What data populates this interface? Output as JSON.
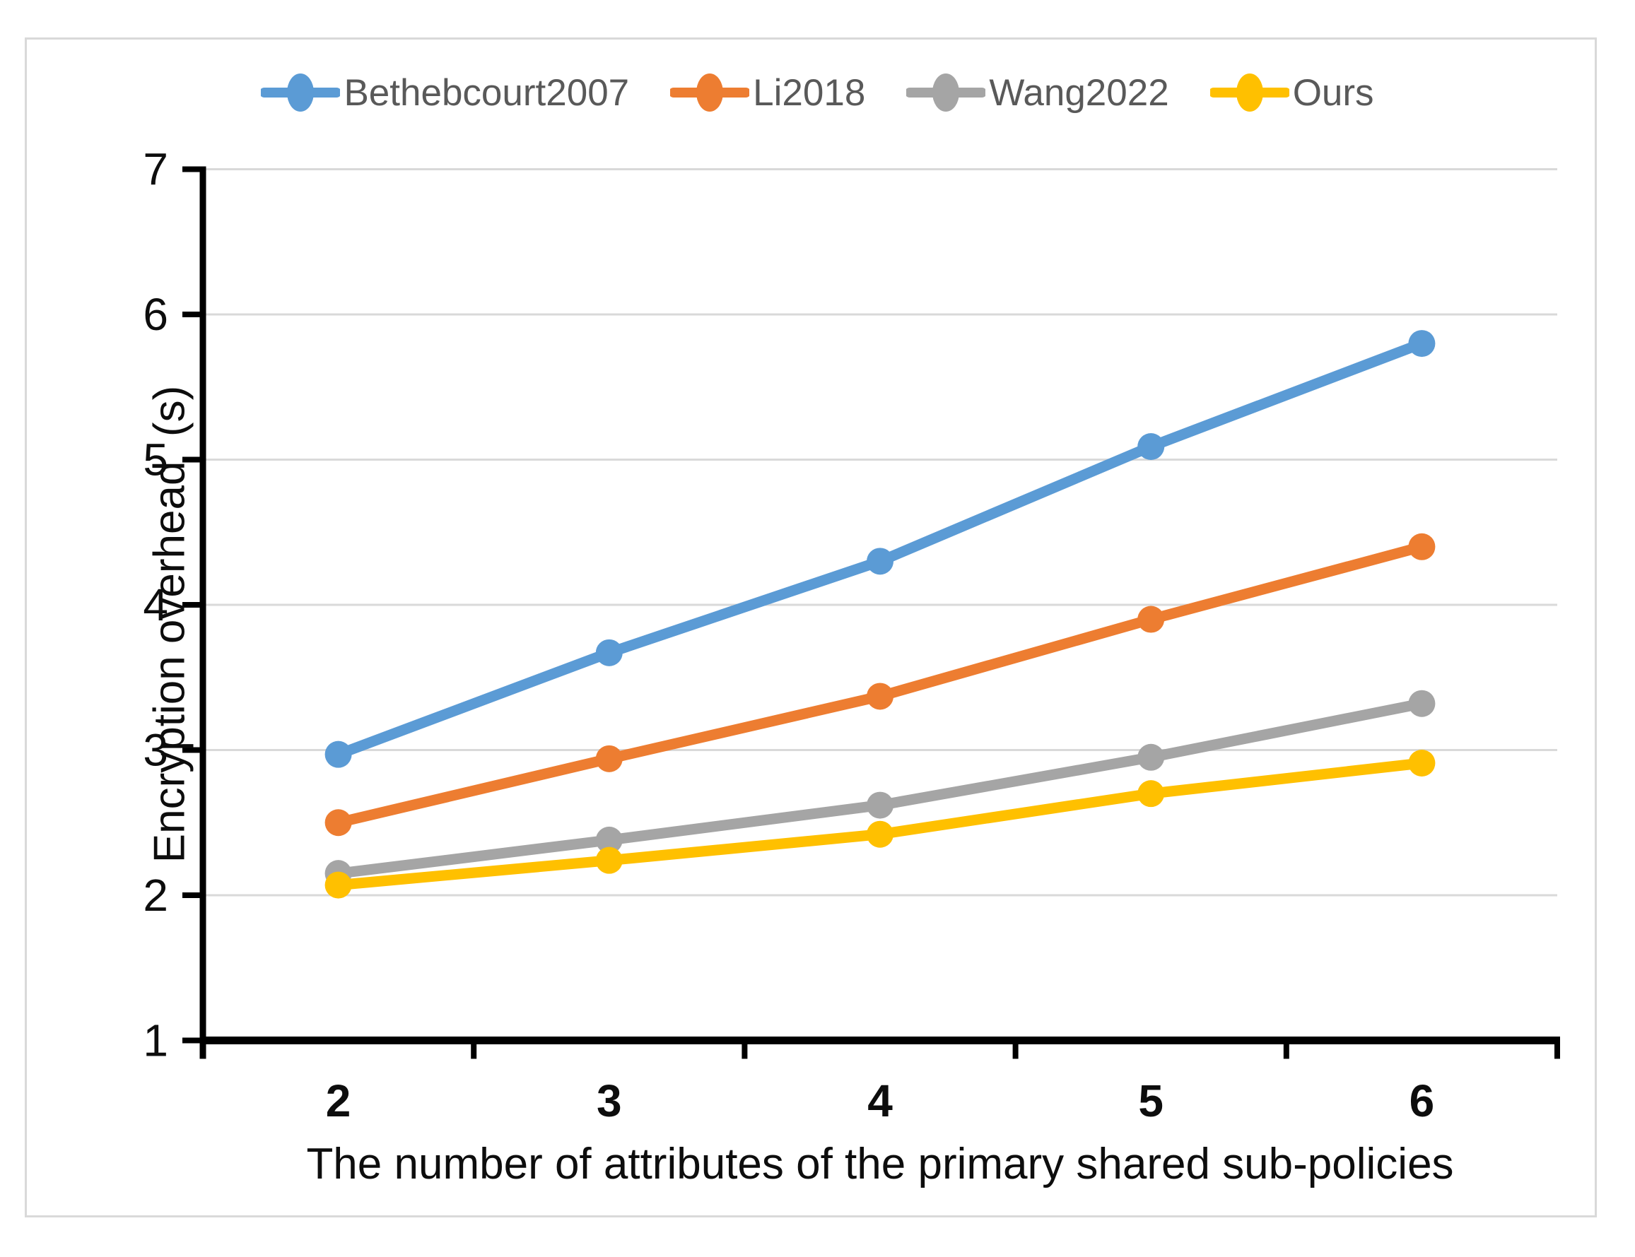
{
  "figure": {
    "background": "#ffffff",
    "border_color": "#d9d9d9",
    "axis_color": "#000000",
    "gridline_color": "#d9d9d9",
    "tick_label_color": "#0d0d0d",
    "legend_text_color": "#595959"
  },
  "legend": {
    "position": "top",
    "items": [
      {
        "label": "Bethebcourt2007",
        "color": "#5B9BD5"
      },
      {
        "label": "Li2018",
        "color": "#ED7D31"
      },
      {
        "label": "Wang2022",
        "color": "#A5A5A5"
      },
      {
        "label": "Ours",
        "color": "#FFC000"
      }
    ]
  },
  "chart_data": {
    "type": "line",
    "title": "",
    "xlabel": "The number of attributes of the primary shared sub-policies",
    "ylabel": "Encryption overhead  (s)",
    "categories": [
      "2",
      "3",
      "4",
      "5",
      "6"
    ],
    "series": [
      {
        "name": "Bethebcourt2007",
        "color": "#5B9BD5",
        "values": [
          2.97,
          3.67,
          4.3,
          5.09,
          5.8
        ]
      },
      {
        "name": "Li2018",
        "color": "#ED7D31",
        "values": [
          2.5,
          2.94,
          3.37,
          3.9,
          4.4
        ]
      },
      {
        "name": "Wang2022",
        "color": "#A5A5A5",
        "values": [
          2.15,
          2.38,
          2.62,
          2.95,
          3.32
        ]
      },
      {
        "name": "Ours",
        "color": "#FFC000",
        "values": [
          2.07,
          2.24,
          2.42,
          2.7,
          2.91
        ]
      }
    ],
    "ylim": [
      1,
      7
    ],
    "yticks": [
      1,
      2,
      3,
      4,
      5,
      6,
      7
    ],
    "grid": "horizontal",
    "legend_position": "top",
    "marker": "circle"
  }
}
